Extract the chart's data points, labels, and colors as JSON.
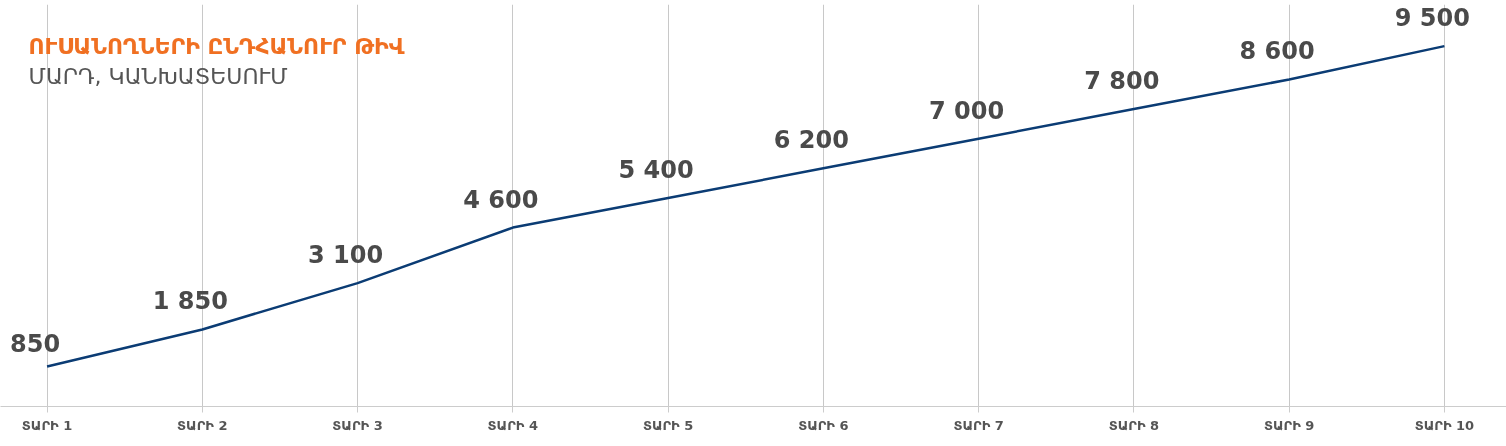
{
  "chart_data": {
    "type": "line",
    "title": "ՈՒՍԱՆՈՂՆԵՐԻ ԸՆԴՀԱՆՈՒՐ ԹԻՎ",
    "subtitle": "ՄԱՐԴ, ԿԱՆԽԱՏԵՍՈՒՄ",
    "categories": [
      "ՏԱՐԻ 1",
      "ՏԱՐԻ 2",
      "ՏԱՐԻ 3",
      "ՏԱՐԻ 4",
      "ՏԱՐԻ 5",
      "ՏԱՐԻ 6",
      "ՏԱՐԻ 7",
      "ՏԱՐԻ 8",
      "ՏԱՐԻ 9",
      "ՏԱՐԻ 10"
    ],
    "series": [
      {
        "color": "#0b3c74",
        "values": [
          850,
          1850,
          3100,
          4600,
          5400,
          6200,
          7000,
          7800,
          8600,
          9500
        ]
      }
    ],
    "data_labels": true,
    "grid": "x",
    "tick_labels": "x",
    "marker": "none",
    "line_style": "solid"
  }
}
